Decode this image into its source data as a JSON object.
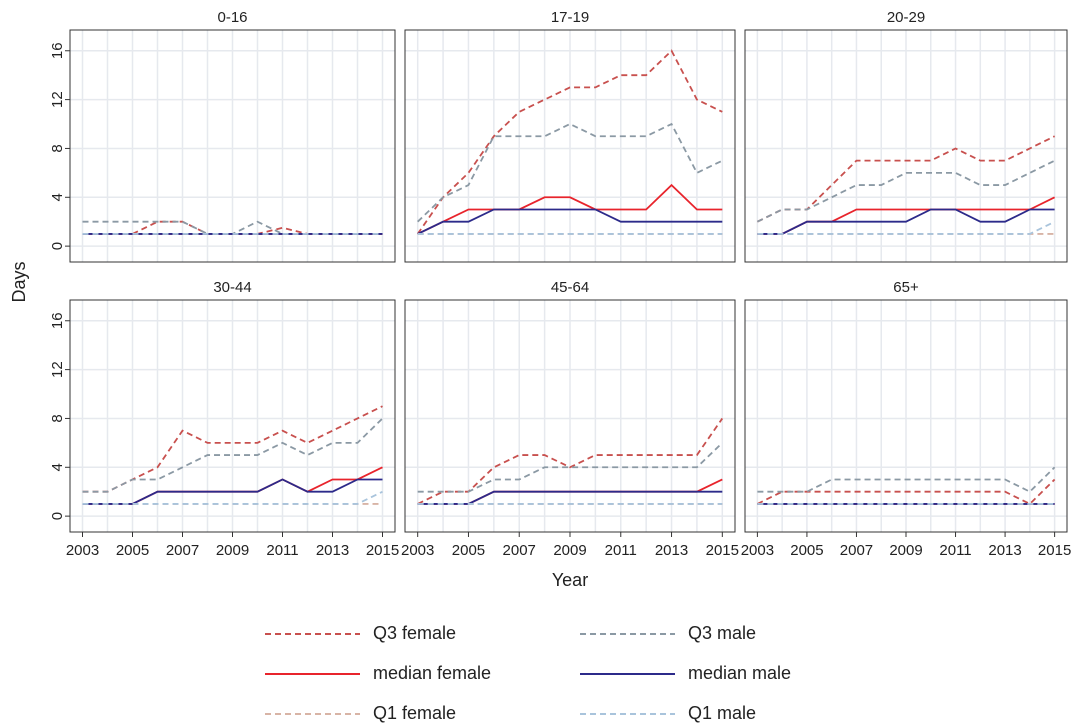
{
  "chart_data": [
    {
      "type": "line",
      "title": "0-16",
      "ylabel": "Days",
      "x": [
        2003,
        2004,
        2005,
        2006,
        2007,
        2008,
        2009,
        2010,
        2011,
        2012,
        2013,
        2014,
        2015
      ],
      "xlim": [
        2002.5,
        2015.5
      ],
      "xticks": [
        2003,
        2005,
        2007,
        2009,
        2011,
        2013,
        2015
      ],
      "ylim": [
        -1.3,
        17.7
      ],
      "yticks": [
        0,
        4,
        8,
        12,
        16
      ],
      "grid": true,
      "series": [
        {
          "name": "Q3 female",
          "color": "#c8504e",
          "line_style": "dashed",
          "values": [
            1,
            1,
            1,
            2,
            2,
            1,
            1,
            1,
            1.5,
            1,
            1,
            1,
            1
          ]
        },
        {
          "name": "median female",
          "color": "#e8242c",
          "line_style": "solid",
          "values": [
            1,
            1,
            1,
            1,
            1,
            1,
            1,
            1,
            1,
            1,
            1,
            1,
            1
          ]
        },
        {
          "name": "Q1 female",
          "color": "#d8b4a6",
          "line_style": "dashed",
          "values": [
            1,
            1,
            1,
            1,
            1,
            1,
            1,
            1,
            1,
            1,
            1,
            1,
            1
          ]
        },
        {
          "name": "Q3 male",
          "color": "#8b99a4",
          "line_style": "dashed",
          "values": [
            2,
            2,
            2,
            2,
            2,
            1,
            1,
            2,
            1,
            1,
            1,
            1,
            1
          ]
        },
        {
          "name": "median male",
          "color": "#2c2a8a",
          "line_style": "solid",
          "values": [
            1,
            1,
            1,
            1,
            1,
            1,
            1,
            1,
            1,
            1,
            1,
            1,
            1
          ]
        },
        {
          "name": "Q1 male",
          "color": "#a9c4dc",
          "line_style": "dashed",
          "values": [
            1,
            1,
            1,
            1,
            1,
            1,
            1,
            1,
            1,
            1,
            1,
            1,
            1
          ]
        }
      ]
    },
    {
      "type": "line",
      "title": "17-19",
      "x": [
        2003,
        2004,
        2005,
        2006,
        2007,
        2008,
        2009,
        2010,
        2011,
        2012,
        2013,
        2014,
        2015
      ],
      "xlim": [
        2002.5,
        2015.5
      ],
      "xticks": [
        2003,
        2005,
        2007,
        2009,
        2011,
        2013,
        2015
      ],
      "ylim": [
        -1.3,
        17.7
      ],
      "yticks": [
        0,
        4,
        8,
        12,
        16
      ],
      "grid": true,
      "series": [
        {
          "name": "Q3 female",
          "color": "#c8504e",
          "line_style": "dashed",
          "values": [
            1,
            4,
            6,
            9,
            11,
            12,
            13,
            13,
            14,
            14,
            16,
            12,
            11
          ]
        },
        {
          "name": "median female",
          "color": "#e8242c",
          "line_style": "solid",
          "values": [
            1,
            2,
            3,
            3,
            3,
            4,
            4,
            3,
            3,
            3,
            5,
            3,
            3
          ]
        },
        {
          "name": "Q1 female",
          "color": "#d8b4a6",
          "line_style": "dashed",
          "values": [
            1,
            1,
            1,
            1,
            1,
            1,
            1,
            1,
            1,
            1,
            1,
            1,
            1
          ]
        },
        {
          "name": "Q3 male",
          "color": "#8b99a4",
          "line_style": "dashed",
          "values": [
            2,
            4,
            5,
            9,
            9,
            9,
            10,
            9,
            9,
            9,
            10,
            6,
            7
          ]
        },
        {
          "name": "median male",
          "color": "#2c2a8a",
          "line_style": "solid",
          "values": [
            1,
            2,
            2,
            3,
            3,
            3,
            3,
            3,
            2,
            2,
            2,
            2,
            2
          ]
        },
        {
          "name": "Q1 male",
          "color": "#a9c4dc",
          "line_style": "dashed",
          "values": [
            1,
            1,
            1,
            1,
            1,
            1,
            1,
            1,
            1,
            1,
            1,
            1,
            1
          ]
        }
      ]
    },
    {
      "type": "line",
      "title": "20-29",
      "x": [
        2003,
        2004,
        2005,
        2006,
        2007,
        2008,
        2009,
        2010,
        2011,
        2012,
        2013,
        2014,
        2015
      ],
      "xlim": [
        2002.5,
        2015.5
      ],
      "xticks": [
        2003,
        2005,
        2007,
        2009,
        2011,
        2013,
        2015
      ],
      "ylim": [
        -1.3,
        17.7
      ],
      "yticks": [
        0,
        4,
        8,
        12,
        16
      ],
      "grid": true,
      "series": [
        {
          "name": "Q3 female",
          "color": "#c8504e",
          "line_style": "dashed",
          "values": [
            2,
            3,
            3,
            5,
            7,
            7,
            7,
            7,
            8,
            7,
            7,
            8,
            9
          ]
        },
        {
          "name": "median female",
          "color": "#e8242c",
          "line_style": "solid",
          "values": [
            1,
            1,
            2,
            2,
            3,
            3,
            3,
            3,
            3,
            3,
            3,
            3,
            4
          ]
        },
        {
          "name": "Q1 female",
          "color": "#d8b4a6",
          "line_style": "dashed",
          "values": [
            1,
            1,
            1,
            1,
            1,
            1,
            1,
            1,
            1,
            1,
            1,
            1,
            1
          ]
        },
        {
          "name": "Q3 male",
          "color": "#8b99a4",
          "line_style": "dashed",
          "values": [
            2,
            3,
            3,
            4,
            5,
            5,
            6,
            6,
            6,
            5,
            5,
            6,
            7
          ]
        },
        {
          "name": "median male",
          "color": "#2c2a8a",
          "line_style": "solid",
          "values": [
            1,
            1,
            2,
            2,
            2,
            2,
            2,
            3,
            3,
            2,
            2,
            3,
            3
          ]
        },
        {
          "name": "Q1 male",
          "color": "#a9c4dc",
          "line_style": "dashed",
          "values": [
            1,
            1,
            1,
            1,
            1,
            1,
            1,
            1,
            1,
            1,
            1,
            1,
            2
          ]
        }
      ]
    },
    {
      "type": "line",
      "title": "30-44",
      "x": [
        2003,
        2004,
        2005,
        2006,
        2007,
        2008,
        2009,
        2010,
        2011,
        2012,
        2013,
        2014,
        2015
      ],
      "xlim": [
        2002.5,
        2015.5
      ],
      "xticks": [
        2003,
        2005,
        2007,
        2009,
        2011,
        2013,
        2015
      ],
      "ylim": [
        -1.3,
        17.7
      ],
      "yticks": [
        0,
        4,
        8,
        12,
        16
      ],
      "grid": true,
      "series": [
        {
          "name": "Q3 female",
          "color": "#c8504e",
          "line_style": "dashed",
          "values": [
            2,
            2,
            3,
            4,
            7,
            6,
            6,
            6,
            7,
            6,
            7,
            8,
            9
          ]
        },
        {
          "name": "median female",
          "color": "#e8242c",
          "line_style": "solid",
          "values": [
            1,
            1,
            1,
            2,
            2,
            2,
            2,
            2,
            3,
            2,
            3,
            3,
            4
          ]
        },
        {
          "name": "Q1 female",
          "color": "#d8b4a6",
          "line_style": "dashed",
          "values": [
            1,
            1,
            1,
            1,
            1,
            1,
            1,
            1,
            1,
            1,
            1,
            1,
            1
          ]
        },
        {
          "name": "Q3 male",
          "color": "#8b99a4",
          "line_style": "dashed",
          "values": [
            2,
            2,
            3,
            3,
            4,
            5,
            5,
            5,
            6,
            5,
            6,
            6,
            8
          ]
        },
        {
          "name": "median male",
          "color": "#2c2a8a",
          "line_style": "solid",
          "values": [
            1,
            1,
            1,
            2,
            2,
            2,
            2,
            2,
            3,
            2,
            2,
            3,
            3
          ]
        },
        {
          "name": "Q1 male",
          "color": "#a9c4dc",
          "line_style": "dashed",
          "values": [
            1,
            1,
            1,
            1,
            1,
            1,
            1,
            1,
            1,
            1,
            1,
            1,
            2
          ]
        }
      ]
    },
    {
      "type": "line",
      "title": "45-64",
      "xlabel": "Year",
      "x": [
        2003,
        2004,
        2005,
        2006,
        2007,
        2008,
        2009,
        2010,
        2011,
        2012,
        2013,
        2014,
        2015
      ],
      "xlim": [
        2002.5,
        2015.5
      ],
      "xticks": [
        2003,
        2005,
        2007,
        2009,
        2011,
        2013,
        2015
      ],
      "ylim": [
        -1.3,
        17.7
      ],
      "yticks": [
        0,
        4,
        8,
        12,
        16
      ],
      "grid": true,
      "series": [
        {
          "name": "Q3 female",
          "color": "#c8504e",
          "line_style": "dashed",
          "values": [
            1,
            2,
            2,
            4,
            5,
            5,
            4,
            5,
            5,
            5,
            5,
            5,
            8
          ]
        },
        {
          "name": "median female",
          "color": "#e8242c",
          "line_style": "solid",
          "values": [
            1,
            1,
            1,
            2,
            2,
            2,
            2,
            2,
            2,
            2,
            2,
            2,
            3
          ]
        },
        {
          "name": "Q1 female",
          "color": "#d8b4a6",
          "line_style": "dashed",
          "values": [
            1,
            1,
            1,
            1,
            1,
            1,
            1,
            1,
            1,
            1,
            1,
            1,
            1
          ]
        },
        {
          "name": "Q3 male",
          "color": "#8b99a4",
          "line_style": "dashed",
          "values": [
            2,
            2,
            2,
            3,
            3,
            4,
            4,
            4,
            4,
            4,
            4,
            4,
            6
          ]
        },
        {
          "name": "median male",
          "color": "#2c2a8a",
          "line_style": "solid",
          "values": [
            1,
            1,
            1,
            2,
            2,
            2,
            2,
            2,
            2,
            2,
            2,
            2,
            2
          ]
        },
        {
          "name": "Q1 male",
          "color": "#a9c4dc",
          "line_style": "dashed",
          "values": [
            1,
            1,
            1,
            1,
            1,
            1,
            1,
            1,
            1,
            1,
            1,
            1,
            1
          ]
        }
      ]
    },
    {
      "type": "line",
      "title": "65+",
      "x": [
        2003,
        2004,
        2005,
        2006,
        2007,
        2008,
        2009,
        2010,
        2011,
        2012,
        2013,
        2014,
        2015
      ],
      "xlim": [
        2002.5,
        2015.5
      ],
      "xticks": [
        2003,
        2005,
        2007,
        2009,
        2011,
        2013,
        2015
      ],
      "ylim": [
        -1.3,
        17.7
      ],
      "yticks": [
        0,
        4,
        8,
        12,
        16
      ],
      "grid": true,
      "series": [
        {
          "name": "Q3 female",
          "color": "#c8504e",
          "line_style": "dashed",
          "values": [
            1,
            2,
            2,
            2,
            2,
            2,
            2,
            2,
            2,
            2,
            2,
            1,
            3
          ]
        },
        {
          "name": "median female",
          "color": "#e8242c",
          "line_style": "solid",
          "values": [
            1,
            1,
            1,
            1,
            1,
            1,
            1,
            1,
            1,
            1,
            1,
            1,
            1
          ]
        },
        {
          "name": "Q1 female",
          "color": "#d8b4a6",
          "line_style": "dashed",
          "values": [
            1,
            1,
            1,
            1,
            1,
            1,
            1,
            1,
            1,
            1,
            1,
            1,
            1
          ]
        },
        {
          "name": "Q3 male",
          "color": "#8b99a4",
          "line_style": "dashed",
          "values": [
            2,
            2,
            2,
            3,
            3,
            3,
            3,
            3,
            3,
            3,
            3,
            2,
            4
          ]
        },
        {
          "name": "median male",
          "color": "#2c2a8a",
          "line_style": "solid",
          "values": [
            1,
            1,
            1,
            1,
            1,
            1,
            1,
            1,
            1,
            1,
            1,
            1,
            1
          ]
        },
        {
          "name": "Q1 male",
          "color": "#a9c4dc",
          "line_style": "dashed",
          "values": [
            1,
            1,
            1,
            1,
            1,
            1,
            1,
            1,
            1,
            1,
            1,
            1,
            1
          ]
        }
      ]
    }
  ]
}
